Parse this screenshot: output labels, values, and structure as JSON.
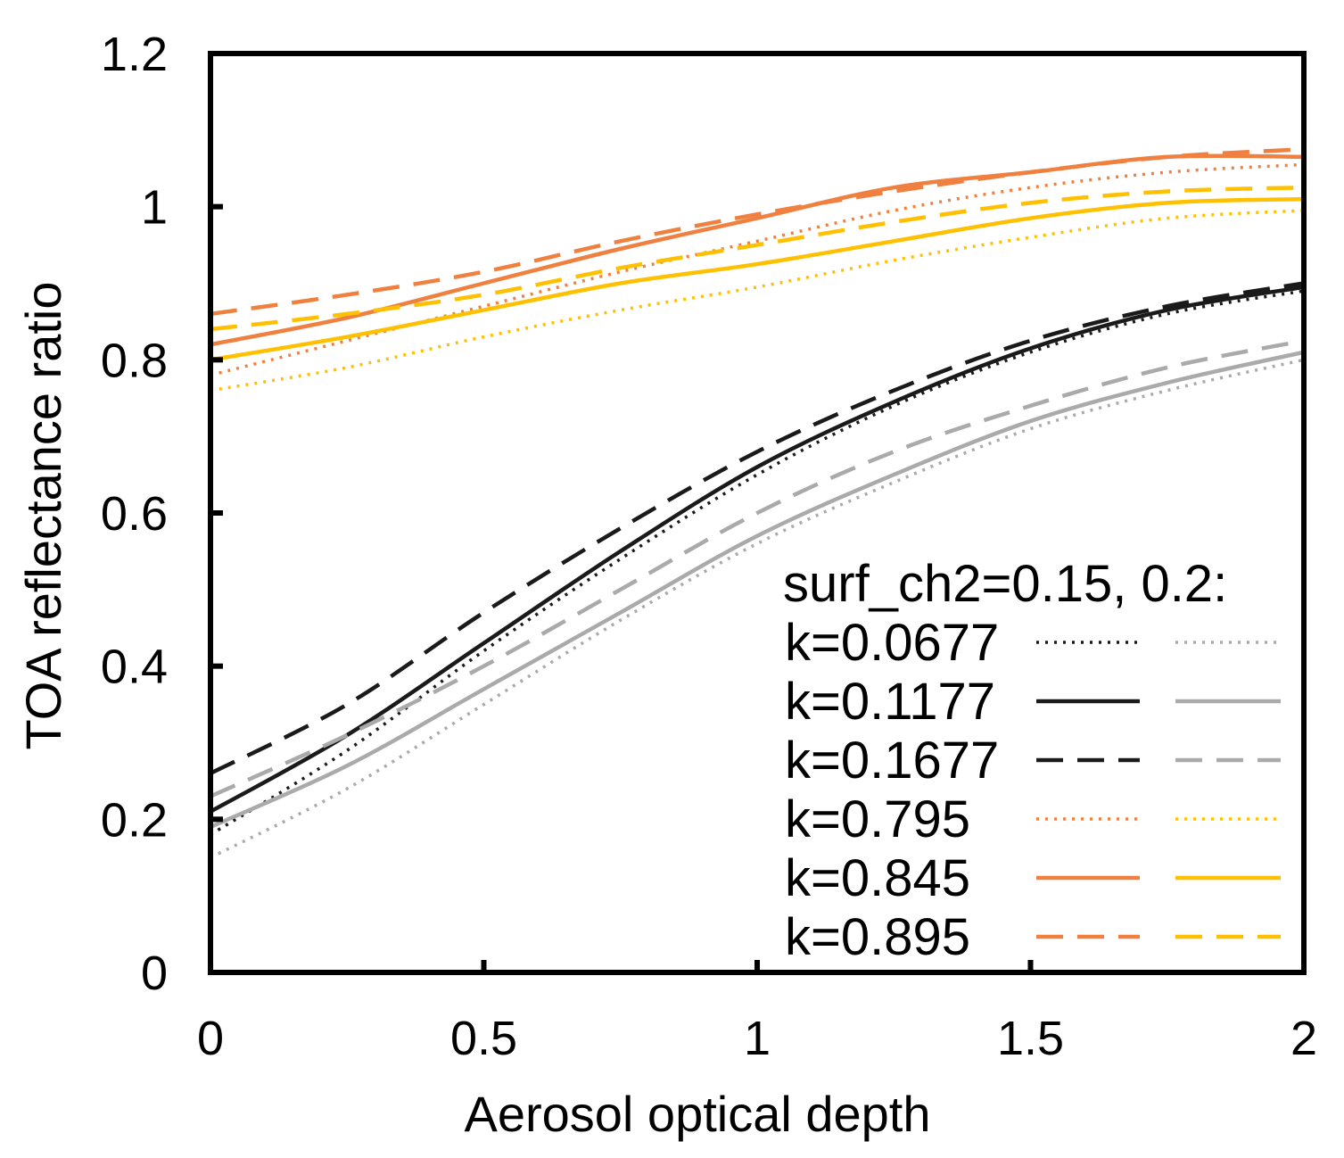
{
  "chart_data": {
    "type": "line",
    "title": "",
    "xlabel": "Aerosol optical depth",
    "ylabel": "TOA reflectance ratio",
    "xlim": [
      0,
      2
    ],
    "ylim": [
      0,
      1.2
    ],
    "xticks": [
      "0",
      "0.5",
      "1",
      "1.5",
      "2"
    ],
    "yticks": [
      "0",
      "0.2",
      "0.4",
      "0.6",
      "0.8",
      "1",
      "1.2"
    ],
    "xtick_values": [
      0,
      0.5,
      1,
      1.5,
      2
    ],
    "ytick_values": [
      0,
      0.2,
      0.4,
      0.6,
      0.8,
      1.0,
      1.2
    ],
    "legend": {
      "title": "surf_ch2=0.15, 0.2:",
      "placement": "bottom-right",
      "entries": [
        "k=0.0677",
        "k=0.1177",
        "k=0.1677",
        "k=0.795",
        "k=0.845",
        "k=0.895"
      ]
    },
    "x": [
      0,
      0.25,
      0.5,
      0.75,
      1.0,
      1.25,
      1.5,
      1.75,
      2.0
    ],
    "series": [
      {
        "name": "k=0.0677, surf_ch2=0.15",
        "color": "#1a1a1a",
        "style": "dotted",
        "values": [
          0.18,
          0.29,
          0.42,
          0.54,
          0.65,
          0.74,
          0.81,
          0.86,
          0.89
        ]
      },
      {
        "name": "k=0.0677, surf_ch2=0.2",
        "color": "#aaaaaa",
        "style": "dotted",
        "values": [
          0.15,
          0.24,
          0.35,
          0.46,
          0.56,
          0.64,
          0.71,
          0.76,
          0.8
        ]
      },
      {
        "name": "k=0.1177, surf_ch2=0.15",
        "color": "#1a1a1a",
        "style": "solid",
        "values": [
          0.21,
          0.31,
          0.43,
          0.55,
          0.66,
          0.745,
          0.815,
          0.865,
          0.895
        ]
      },
      {
        "name": "k=0.1177, surf_ch2=0.2",
        "color": "#aaaaaa",
        "style": "solid",
        "values": [
          0.19,
          0.27,
          0.37,
          0.47,
          0.57,
          0.65,
          0.72,
          0.77,
          0.81
        ]
      },
      {
        "name": "k=0.1677, surf_ch2=0.15",
        "color": "#1a1a1a",
        "style": "dashed",
        "values": [
          0.26,
          0.35,
          0.47,
          0.58,
          0.68,
          0.76,
          0.825,
          0.87,
          0.9
        ]
      },
      {
        "name": "k=0.1677, surf_ch2=0.2",
        "color": "#aaaaaa",
        "style": "dashed",
        "values": [
          0.23,
          0.31,
          0.4,
          0.5,
          0.6,
          0.68,
          0.74,
          0.79,
          0.825
        ]
      },
      {
        "name": "k=0.795, surf_ch2=0.15",
        "color": "#f08040",
        "style": "dotted",
        "values": [
          0.78,
          0.825,
          0.87,
          0.915,
          0.955,
          0.995,
          1.025,
          1.045,
          1.055
        ]
      },
      {
        "name": "k=0.795, surf_ch2=0.2",
        "color": "#ffc000",
        "style": "dotted",
        "values": [
          0.76,
          0.79,
          0.83,
          0.865,
          0.895,
          0.93,
          0.96,
          0.985,
          0.995
        ]
      },
      {
        "name": "k=0.845, surf_ch2=0.15",
        "color": "#f08040",
        "style": "solid",
        "values": [
          0.82,
          0.855,
          0.9,
          0.945,
          0.985,
          1.025,
          1.045,
          1.065,
          1.065
        ]
      },
      {
        "name": "k=0.845, surf_ch2=0.2",
        "color": "#ffc000",
        "style": "solid",
        "values": [
          0.8,
          0.83,
          0.865,
          0.9,
          0.925,
          0.955,
          0.985,
          1.005,
          1.01
        ]
      },
      {
        "name": "k=0.895, surf_ch2=0.15",
        "color": "#f08040",
        "style": "dashed",
        "values": [
          0.86,
          0.885,
          0.915,
          0.955,
          0.99,
          1.02,
          1.045,
          1.065,
          1.075
        ]
      },
      {
        "name": "k=0.895, surf_ch2=0.2",
        "color": "#ffc000",
        "style": "dashed",
        "values": [
          0.84,
          0.86,
          0.885,
          0.92,
          0.95,
          0.98,
          1.005,
          1.02,
          1.025
        ]
      }
    ]
  }
}
